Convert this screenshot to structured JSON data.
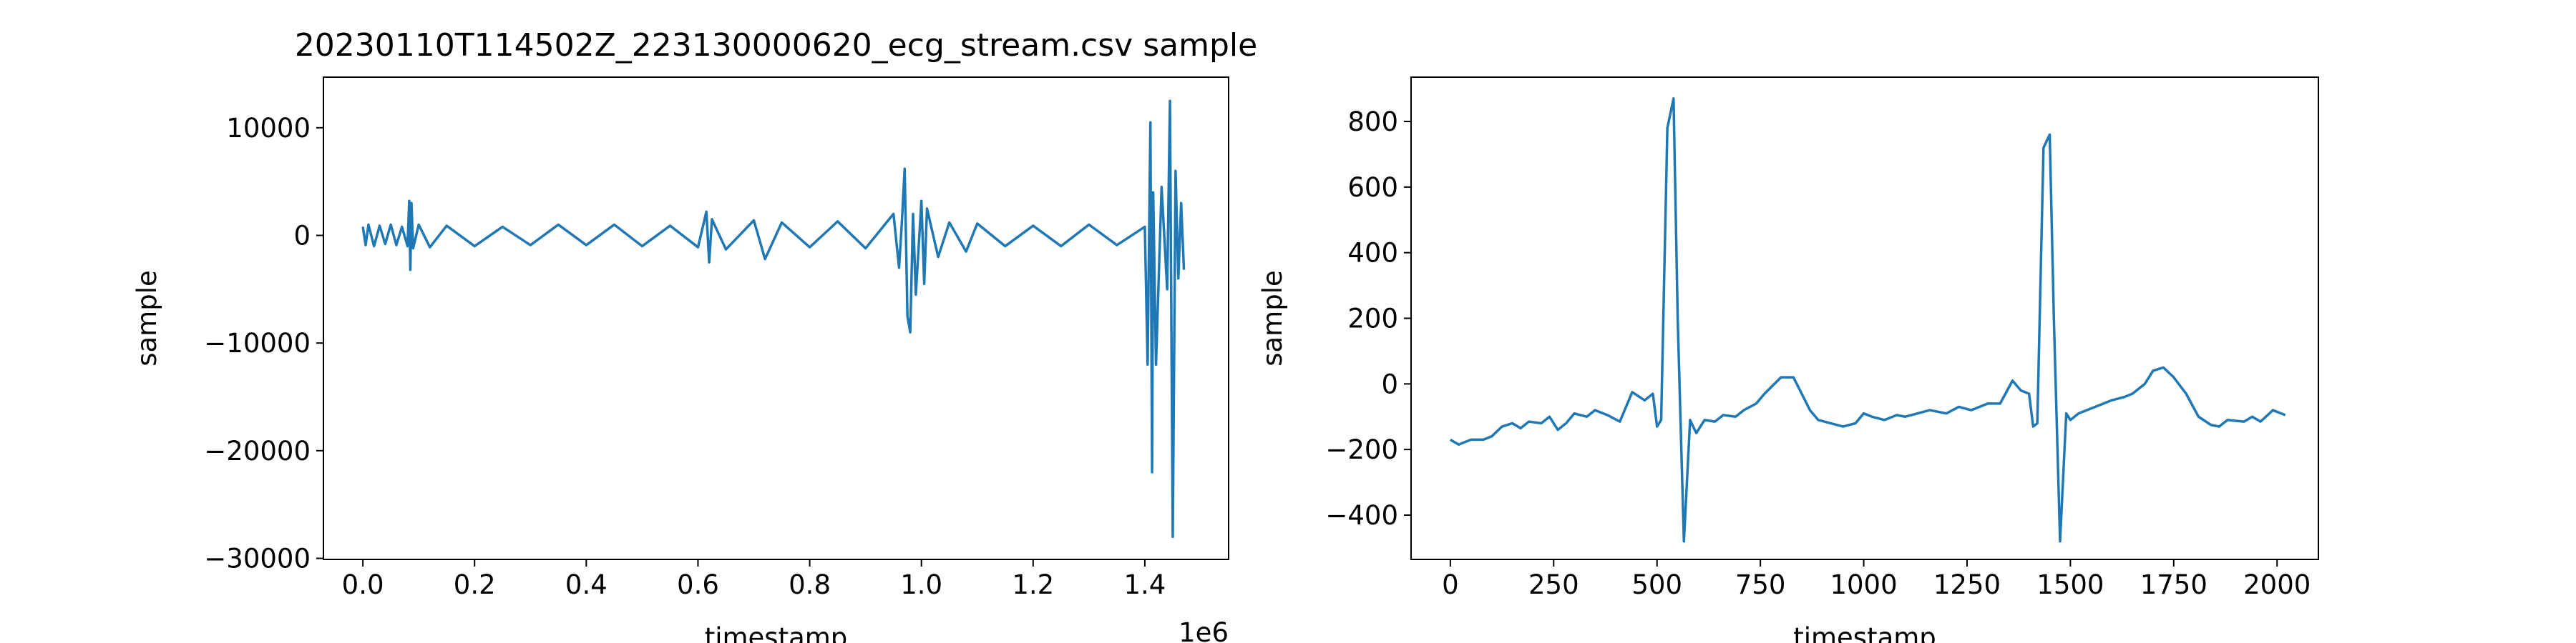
{
  "chart_data": [
    {
      "type": "line",
      "title": "20230110T114502Z_223130000620_ecg_stream.csv sample",
      "x_label": "timestamp",
      "y_label": "sample",
      "x_offset_label": "1e6",
      "color": "#1f77b4",
      "xlim": [
        -0.0706,
        1.55
      ],
      "ylim": [
        -30100,
        14700
      ],
      "xticks": [
        {
          "value": 0,
          "label": "0.0"
        },
        0.2,
        0.4,
        0.6,
        0.8,
        {
          "value": 1,
          "label": "1.0"
        },
        1.2,
        1.4
      ],
      "yticks": [
        {
          "value": -30000,
          "label": "−30000"
        },
        {
          "value": -20000,
          "label": "−20000"
        },
        {
          "value": -10000,
          "label": "−10000"
        },
        0,
        10000
      ],
      "x": [
        0,
        0.005,
        0.01,
        0.02,
        0.03,
        0.04,
        0.05,
        0.06,
        0.07,
        0.08,
        0.083,
        0.085,
        0.087,
        0.09,
        0.1,
        0.12,
        0.15,
        0.2,
        0.25,
        0.3,
        0.35,
        0.4,
        0.45,
        0.5,
        0.55,
        0.6,
        0.615,
        0.62,
        0.625,
        0.65,
        0.7,
        0.72,
        0.75,
        0.8,
        0.85,
        0.9,
        0.95,
        0.96,
        0.965,
        0.97,
        0.975,
        0.98,
        0.985,
        0.99,
        1.0,
        1.005,
        1.01,
        1.03,
        1.05,
        1.08,
        1.1,
        1.15,
        1.2,
        1.25,
        1.3,
        1.35,
        1.4,
        1.405,
        1.41,
        1.413,
        1.415,
        1.42,
        1.43,
        1.44,
        1.445,
        1.45,
        1.455,
        1.46,
        1.465,
        1.47
      ],
      "values": [
        800,
        -900,
        1000,
        -1000,
        900,
        -800,
        1000,
        -900,
        800,
        -1000,
        3200,
        -3200,
        3000,
        -1200,
        1000,
        -1100,
        900,
        -1000,
        800,
        -900,
        1000,
        -900,
        1000,
        -1000,
        900,
        -1100,
        2200,
        -2500,
        1500,
        -1300,
        1400,
        -2200,
        1200,
        -1100,
        1300,
        -1200,
        2000,
        -3000,
        1200,
        6200,
        -7500,
        -9000,
        2000,
        -5500,
        3200,
        -4500,
        2500,
        -2000,
        1200,
        -1500,
        1100,
        -1000,
        900,
        -1000,
        1000,
        -900,
        800,
        -12000,
        10500,
        -22000,
        4000,
        -12000,
        4500,
        -5000,
        12500,
        -28000,
        6000,
        -4000,
        3000,
        -3200
      ]
    },
    {
      "type": "line",
      "x_label": "timestamp",
      "y_label": "sample",
      "color": "#1f77b4",
      "xlim": [
        -95,
        2100
      ],
      "ylim": [
        -535,
        935
      ],
      "xticks": [
        0,
        250,
        500,
        750,
        1000,
        1250,
        1500,
        1750,
        2000
      ],
      "yticks": [
        {
          "value": -400,
          "label": "−400"
        },
        {
          "value": -200,
          "label": "−200"
        },
        0,
        200,
        400,
        600,
        800
      ],
      "x": [
        0,
        20,
        50,
        80,
        100,
        125,
        150,
        170,
        190,
        220,
        240,
        260,
        280,
        300,
        330,
        350,
        380,
        410,
        440,
        470,
        490,
        500,
        510,
        525,
        540,
        550,
        565,
        580,
        595,
        615,
        640,
        660,
        690,
        710,
        740,
        760,
        800,
        830,
        870,
        890,
        920,
        950,
        980,
        1000,
        1020,
        1050,
        1080,
        1100,
        1130,
        1160,
        1200,
        1230,
        1260,
        1300,
        1330,
        1360,
        1380,
        1400,
        1410,
        1420,
        1435,
        1450,
        1460,
        1475,
        1490,
        1500,
        1520,
        1560,
        1600,
        1630,
        1650,
        1680,
        1700,
        1725,
        1750,
        1780,
        1810,
        1840,
        1860,
        1880,
        1920,
        1940,
        1960,
        1990,
        2020
      ],
      "values": [
        -170,
        -185,
        -170,
        -170,
        -160,
        -130,
        -120,
        -135,
        -115,
        -120,
        -100,
        -140,
        -120,
        -90,
        -100,
        -80,
        -95,
        -115,
        -25,
        -50,
        -30,
        -130,
        -110,
        780,
        870,
        200,
        -480,
        -110,
        -150,
        -110,
        -115,
        -95,
        -100,
        -80,
        -60,
        -30,
        20,
        20,
        -80,
        -110,
        -120,
        -130,
        -120,
        -90,
        -100,
        -110,
        -95,
        -100,
        -90,
        -80,
        -90,
        -70,
        -80,
        -60,
        -60,
        10,
        -20,
        -30,
        -130,
        -120,
        720,
        760,
        200,
        -480,
        -90,
        -110,
        -90,
        -70,
        -50,
        -40,
        -30,
        0,
        40,
        50,
        20,
        -30,
        -100,
        -125,
        -130,
        -110,
        -115,
        -100,
        -115,
        -80,
        -95
      ]
    }
  ]
}
